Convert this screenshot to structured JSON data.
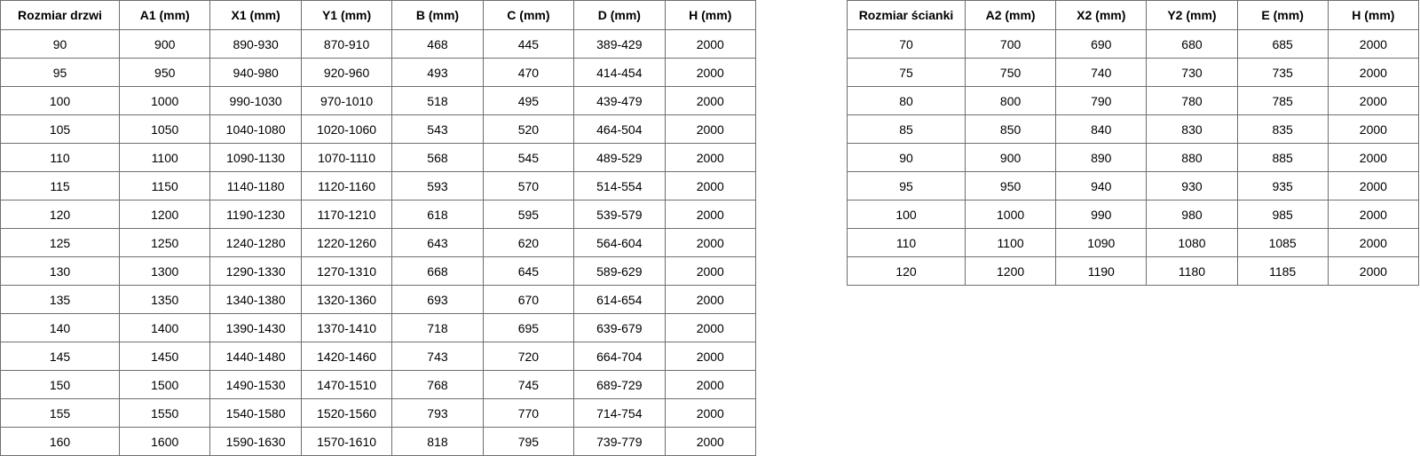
{
  "door_table": {
    "headers": [
      "Rozmiar drzwi",
      "A1 (mm)",
      "X1 (mm)",
      "Y1 (mm)",
      "B (mm)",
      "C (mm)",
      "D (mm)",
      "H (mm)"
    ],
    "rows": [
      [
        "90",
        "900",
        "890-930",
        "870-910",
        "468",
        "445",
        "389-429",
        "2000"
      ],
      [
        "95",
        "950",
        "940-980",
        "920-960",
        "493",
        "470",
        "414-454",
        "2000"
      ],
      [
        "100",
        "1000",
        "990-1030",
        "970-1010",
        "518",
        "495",
        "439-479",
        "2000"
      ],
      [
        "105",
        "1050",
        "1040-1080",
        "1020-1060",
        "543",
        "520",
        "464-504",
        "2000"
      ],
      [
        "110",
        "1100",
        "1090-1130",
        "1070-1110",
        "568",
        "545",
        "489-529",
        "2000"
      ],
      [
        "115",
        "1150",
        "1140-1180",
        "1120-1160",
        "593",
        "570",
        "514-554",
        "2000"
      ],
      [
        "120",
        "1200",
        "1190-1230",
        "1170-1210",
        "618",
        "595",
        "539-579",
        "2000"
      ],
      [
        "125",
        "1250",
        "1240-1280",
        "1220-1260",
        "643",
        "620",
        "564-604",
        "2000"
      ],
      [
        "130",
        "1300",
        "1290-1330",
        "1270-1310",
        "668",
        "645",
        "589-629",
        "2000"
      ],
      [
        "135",
        "1350",
        "1340-1380",
        "1320-1360",
        "693",
        "670",
        "614-654",
        "2000"
      ],
      [
        "140",
        "1400",
        "1390-1430",
        "1370-1410",
        "718",
        "695",
        "639-679",
        "2000"
      ],
      [
        "145",
        "1450",
        "1440-1480",
        "1420-1460",
        "743",
        "720",
        "664-704",
        "2000"
      ],
      [
        "150",
        "1500",
        "1490-1530",
        "1470-1510",
        "768",
        "745",
        "689-729",
        "2000"
      ],
      [
        "155",
        "1550",
        "1540-1580",
        "1520-1560",
        "793",
        "770",
        "714-754",
        "2000"
      ],
      [
        "160",
        "1600",
        "1590-1630",
        "1570-1610",
        "818",
        "795",
        "739-779",
        "2000"
      ]
    ]
  },
  "wall_table": {
    "headers": [
      "Rozmiar ścianki",
      "A2 (mm)",
      "X2 (mm)",
      "Y2 (mm)",
      "E (mm)",
      "H (mm)"
    ],
    "rows": [
      [
        "70",
        "700",
        "690",
        "680",
        "685",
        "2000"
      ],
      [
        "75",
        "750",
        "740",
        "730",
        "735",
        "2000"
      ],
      [
        "80",
        "800",
        "790",
        "780",
        "785",
        "2000"
      ],
      [
        "85",
        "850",
        "840",
        "830",
        "835",
        "2000"
      ],
      [
        "90",
        "900",
        "890",
        "880",
        "885",
        "2000"
      ],
      [
        "95",
        "950",
        "940",
        "930",
        "935",
        "2000"
      ],
      [
        "100",
        "1000",
        "990",
        "980",
        "985",
        "2000"
      ],
      [
        "110",
        "1100",
        "1090",
        "1080",
        "1085",
        "2000"
      ],
      [
        "120",
        "1200",
        "1190",
        "1180",
        "1185",
        "2000"
      ]
    ]
  }
}
